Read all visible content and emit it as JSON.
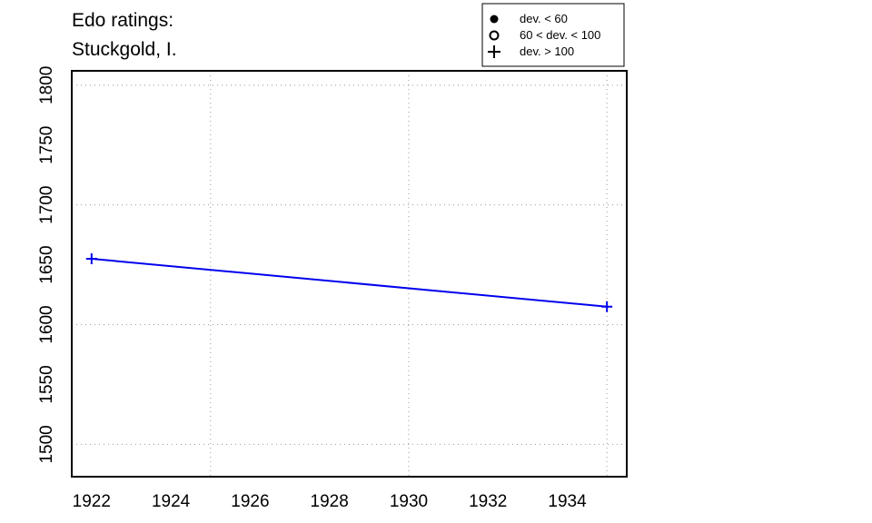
{
  "chart_data": {
    "type": "line",
    "title_lines": [
      "Edo ratings:",
      "Stuckgold, I."
    ],
    "xlabel": "",
    "ylabel": "",
    "x_ticks": [
      1922,
      1924,
      1926,
      1928,
      1930,
      1932,
      1934
    ],
    "y_ticks": [
      1500,
      1550,
      1600,
      1650,
      1700,
      1750,
      1800
    ],
    "x_grid": [
      1925,
      1930,
      1935
    ],
    "y_grid": [
      1500,
      1600,
      1700,
      1800
    ],
    "xlim": [
      1921.5,
      1935.5
    ],
    "ylim": [
      1473,
      1812
    ],
    "grid": true,
    "series": [
      {
        "x": [
          1922,
          1935
        ],
        "y": [
          1655,
          1615
        ],
        "marker": "plus",
        "color": "#0000ee"
      }
    ],
    "legend": {
      "placement": "top-right",
      "entries": [
        {
          "symbol": "filled-circle",
          "label": "dev. < 60"
        },
        {
          "symbol": "open-circle",
          "label": "60 < dev. < 100"
        },
        {
          "symbol": "plus",
          "label": "dev. > 100"
        }
      ]
    }
  }
}
